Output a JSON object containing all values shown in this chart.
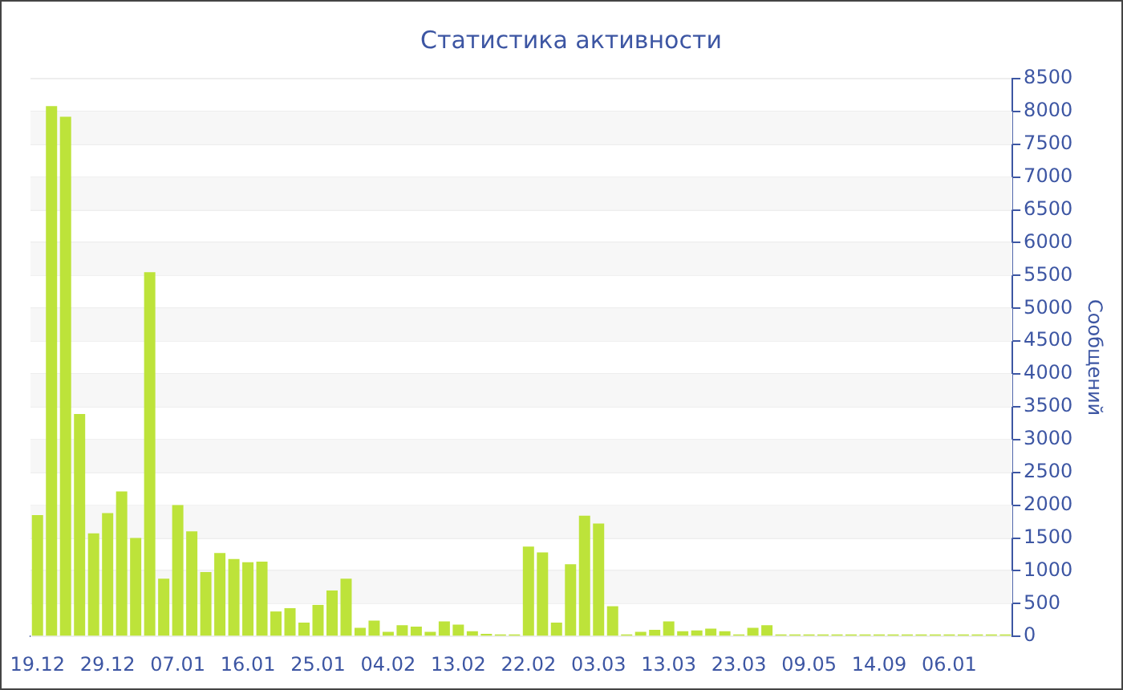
{
  "chart_data": {
    "type": "bar",
    "title": "Статистика активности",
    "ylabel": "Сообщений",
    "categories": [
      "19.12",
      null,
      null,
      null,
      null,
      "29.12",
      null,
      null,
      null,
      null,
      "07.01",
      null,
      null,
      null,
      null,
      "16.01",
      null,
      null,
      null,
      null,
      "25.01",
      null,
      null,
      null,
      null,
      "04.02",
      null,
      null,
      null,
      null,
      "13.02",
      null,
      null,
      null,
      null,
      "22.02",
      null,
      null,
      null,
      null,
      "03.03",
      null,
      null,
      null,
      null,
      "13.03",
      null,
      null,
      null,
      null,
      "23.03",
      null,
      null,
      null,
      null,
      "09.05",
      null,
      null,
      null,
      null,
      "14.09",
      null,
      null,
      null,
      null,
      "06.01",
      null,
      null,
      null,
      null
    ],
    "values": [
      1850,
      8080,
      7920,
      3390,
      1570,
      1880,
      2210,
      1500,
      5550,
      880,
      2000,
      1600,
      980,
      1270,
      1180,
      1130,
      1140,
      380,
      430,
      210,
      480,
      700,
      880,
      130,
      240,
      70,
      170,
      150,
      70,
      230,
      180,
      80,
      40,
      30,
      30,
      1370,
      1280,
      210,
      1100,
      1840,
      1720,
      460,
      30,
      70,
      100,
      230,
      80,
      90,
      120,
      80,
      30,
      130,
      170,
      30,
      30,
      30,
      30,
      30,
      30,
      30,
      30,
      30,
      30,
      30,
      30,
      30,
      30,
      30,
      30,
      30
    ],
    "color": "#bde33a",
    "ylim": [
      0,
      8500
    ],
    "yticks": [
      0,
      500,
      1000,
      1500,
      2000,
      2500,
      3000,
      3500,
      4000,
      4500,
      5000,
      5500,
      6000,
      6500,
      7000,
      7500,
      8000,
      8500
    ],
    "grid": "y",
    "legend": false
  }
}
